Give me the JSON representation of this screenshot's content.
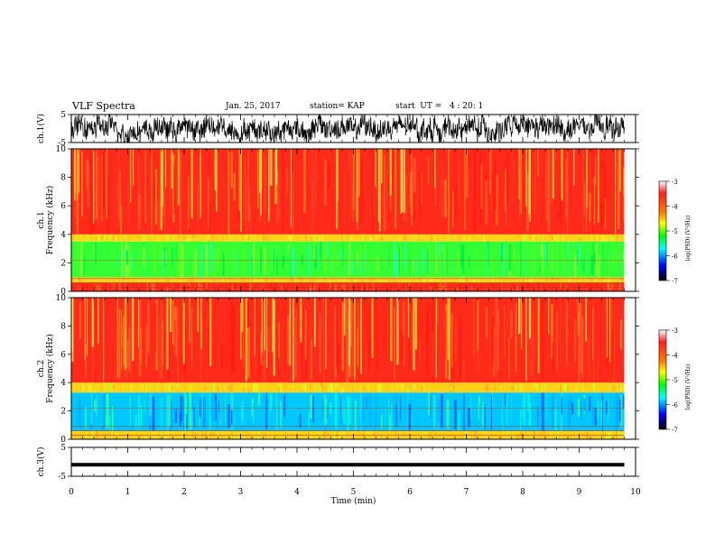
{
  "header": {
    "title": "VLF Spectra",
    "date": "Jan. 25, 2017",
    "station": "station= KAP",
    "start": "start  UT =   4 : 20: 1"
  },
  "colorbar": {
    "label": "log(PSD) (V²/Hz)",
    "ticks": [
      "-3",
      "-4",
      "-5",
      "-6",
      "-7"
    ],
    "colors": [
      "#ffffff",
      "#ff0000",
      "#ffff00",
      "#00ff00",
      "#00ffff",
      "#0000ff",
      "#000000"
    ]
  },
  "chart_data": [
    {
      "type": "line",
      "name": "ch1-waveform",
      "ylabel": "ch.1(V)",
      "ylim": [
        -5,
        5
      ],
      "yticks": [
        "5",
        "-5"
      ],
      "xlim": [
        0,
        10
      ],
      "note_values": "waveform oscillates roughly between -5 and +5 V throughout",
      "series": [
        {
          "name": "ch.1",
          "amplitude_range": [
            -5,
            5
          ]
        }
      ]
    },
    {
      "type": "heatmap",
      "name": "ch1-spectrogram",
      "ylabel": "ch.1\nFrequency (kHz)",
      "ylabel_lines": [
        "ch.1",
        "Frequency (kHz)"
      ],
      "xlim": [
        0,
        10
      ],
      "ylim": [
        0,
        10
      ],
      "yticks": [
        "0",
        "2",
        "4",
        "6",
        "8",
        "10"
      ],
      "data_end_min": 9.8,
      "bands": [
        {
          "from_khz": 0,
          "to_khz": 0.6,
          "level": "high"
        },
        {
          "from_khz": 0.6,
          "to_khz": 1.0,
          "level": "mid"
        },
        {
          "from_khz": 1.0,
          "to_khz": 3.5,
          "level": "low"
        },
        {
          "from_khz": 3.5,
          "to_khz": 4.0,
          "level": "mid"
        },
        {
          "from_khz": 4.0,
          "to_khz": 10,
          "level": "high"
        }
      ]
    },
    {
      "type": "heatmap",
      "name": "ch2-spectrogram",
      "ylabel": "ch.2\nFrequency (kHz)",
      "ylabel_lines": [
        "ch.2",
        "Frequency (kHz)"
      ],
      "xlim": [
        0,
        10
      ],
      "ylim": [
        0,
        10
      ],
      "yticks": [
        "0",
        "2",
        "4",
        "6",
        "8",
        "10"
      ],
      "data_end_min": 9.8,
      "bands": [
        {
          "from_khz": 0,
          "to_khz": 0.6,
          "level": "mid"
        },
        {
          "from_khz": 0.6,
          "to_khz": 3.3,
          "level": "very-low"
        },
        {
          "from_khz": 3.3,
          "to_khz": 4.0,
          "level": "mid"
        },
        {
          "from_khz": 4.0,
          "to_khz": 10,
          "level": "high"
        }
      ]
    },
    {
      "type": "line",
      "name": "ch3-waveform",
      "ylabel": "ch.3(V)",
      "ylim": [
        -5,
        5
      ],
      "yticks": [
        "5",
        "-5"
      ],
      "xlim": [
        0,
        10
      ],
      "series": [
        {
          "name": "ch.3",
          "value": -1,
          "note": "flat line near -1 V"
        }
      ]
    }
  ],
  "xaxis": {
    "label": "Time (min)",
    "ticks": [
      "0",
      "1",
      "2",
      "3",
      "4",
      "5",
      "6",
      "7",
      "8",
      "9",
      "10"
    ]
  }
}
